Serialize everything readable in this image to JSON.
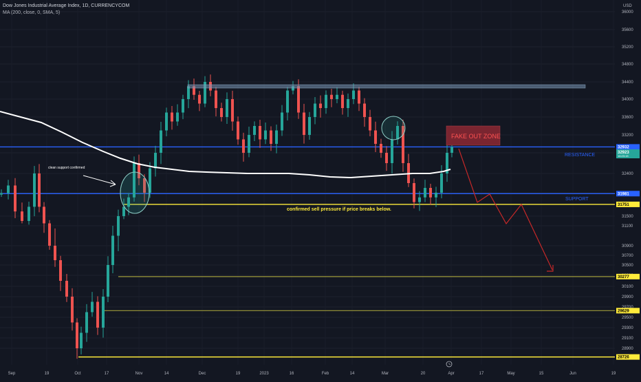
{
  "header": {
    "title": "Dow Jones Industrial Average Index, 1D, CURRENCYCOM",
    "indicator": "MA (200, close, 0, SMA, 5)"
  },
  "colors": {
    "background": "#131722",
    "up": "#26a69a",
    "down": "#ef5350",
    "ma": "#ffffff",
    "blue_line": "#2962ff",
    "yellow_line": "#ffeb3b",
    "olive_line": "#9e9a3a",
    "projection": "#c62828"
  },
  "chart_data": {
    "type": "candlestick",
    "currency_label": "USD",
    "y_ticks": [
      36000,
      35600,
      35200,
      34800,
      34400,
      34000,
      33600,
      33200,
      32800,
      32400,
      32000,
      31500,
      31100,
      30900,
      30700,
      30500,
      30300,
      30100,
      29900,
      29700,
      29500,
      29300,
      29100,
      28900,
      28500
    ],
    "x_ticks": [
      "Sep",
      "19",
      "Oct",
      "17",
      "Nov",
      "14",
      "Dec",
      "19",
      "2023",
      "16",
      "Feb",
      "14",
      "Mar",
      "20",
      "Apr",
      "17",
      "May",
      "15",
      "Jun",
      "19"
    ],
    "price_tags": [
      {
        "label": "32932",
        "value": 32932,
        "style": "blue"
      },
      {
        "label": "32923",
        "value": 32923,
        "style": "green",
        "sub": "16:23:15"
      },
      {
        "label": "31981",
        "value": 31981,
        "style": "blue"
      },
      {
        "label": "31751",
        "value": 31751,
        "style": "yellow"
      },
      {
        "label": "30277",
        "value": 30277,
        "style": "yellow"
      },
      {
        "label": "29629",
        "value": 29629,
        "style": "yellow"
      },
      {
        "label": "28726",
        "value": 28726,
        "style": "yellow"
      }
    ],
    "levels": [
      {
        "name": "resistance",
        "value": 32932,
        "style": "blue"
      },
      {
        "name": "support",
        "value": 31981,
        "style": "blue"
      },
      {
        "name": "sell-pressure",
        "value": 31751,
        "style": "yellow"
      },
      {
        "name": "level-30277",
        "value": 30277,
        "style": "olive"
      },
      {
        "name": "level-29629",
        "value": 29629,
        "style": "olive"
      },
      {
        "name": "level-28726",
        "value": 28726,
        "style": "yellow"
      }
    ],
    "resistance_zone": [
      34260,
      34330
    ],
    "annotations": {
      "resistance": "RESISTANCE",
      "support": "SUPPORT",
      "sell_pressure": "confirmed sell pressure if price breaks below.",
      "clean_support": "clean support confirmed",
      "fake_out": "FAKE OUT ZONE"
    }
  }
}
